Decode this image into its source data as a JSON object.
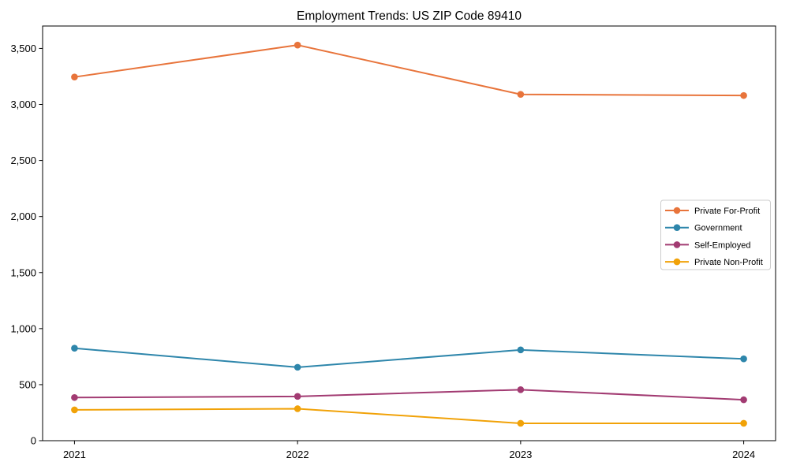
{
  "chart_data": {
    "type": "line",
    "title": "Employment Trends: US ZIP Code 89410",
    "xlabel": "",
    "ylabel": "",
    "x": [
      2021,
      2022,
      2023,
      2024
    ],
    "x_tick_labels": [
      "2021",
      "2022",
      "2023",
      "2024"
    ],
    "y_ticks": [
      0,
      500,
      1000,
      1500,
      2000,
      2500,
      3000,
      3500
    ],
    "y_tick_labels": [
      "0",
      "500",
      "1,000",
      "1,500",
      "2,000",
      "2,500",
      "3,000",
      "3,500"
    ],
    "ylim": [
      0,
      3700
    ],
    "grid": false,
    "legend_position": "center right",
    "marker": "circle",
    "series": [
      {
        "name": "Private For-Profit",
        "color": "#E8743B",
        "values": [
          3245,
          3530,
          3090,
          3080
        ]
      },
      {
        "name": "Government",
        "color": "#2E86AB",
        "values": [
          825,
          655,
          810,
          730
        ]
      },
      {
        "name": "Self-Employed",
        "color": "#A23B72",
        "values": [
          385,
          395,
          455,
          365
        ]
      },
      {
        "name": "Private Non-Profit",
        "color": "#F1A208",
        "values": [
          275,
          285,
          155,
          155
        ]
      }
    ]
  }
}
